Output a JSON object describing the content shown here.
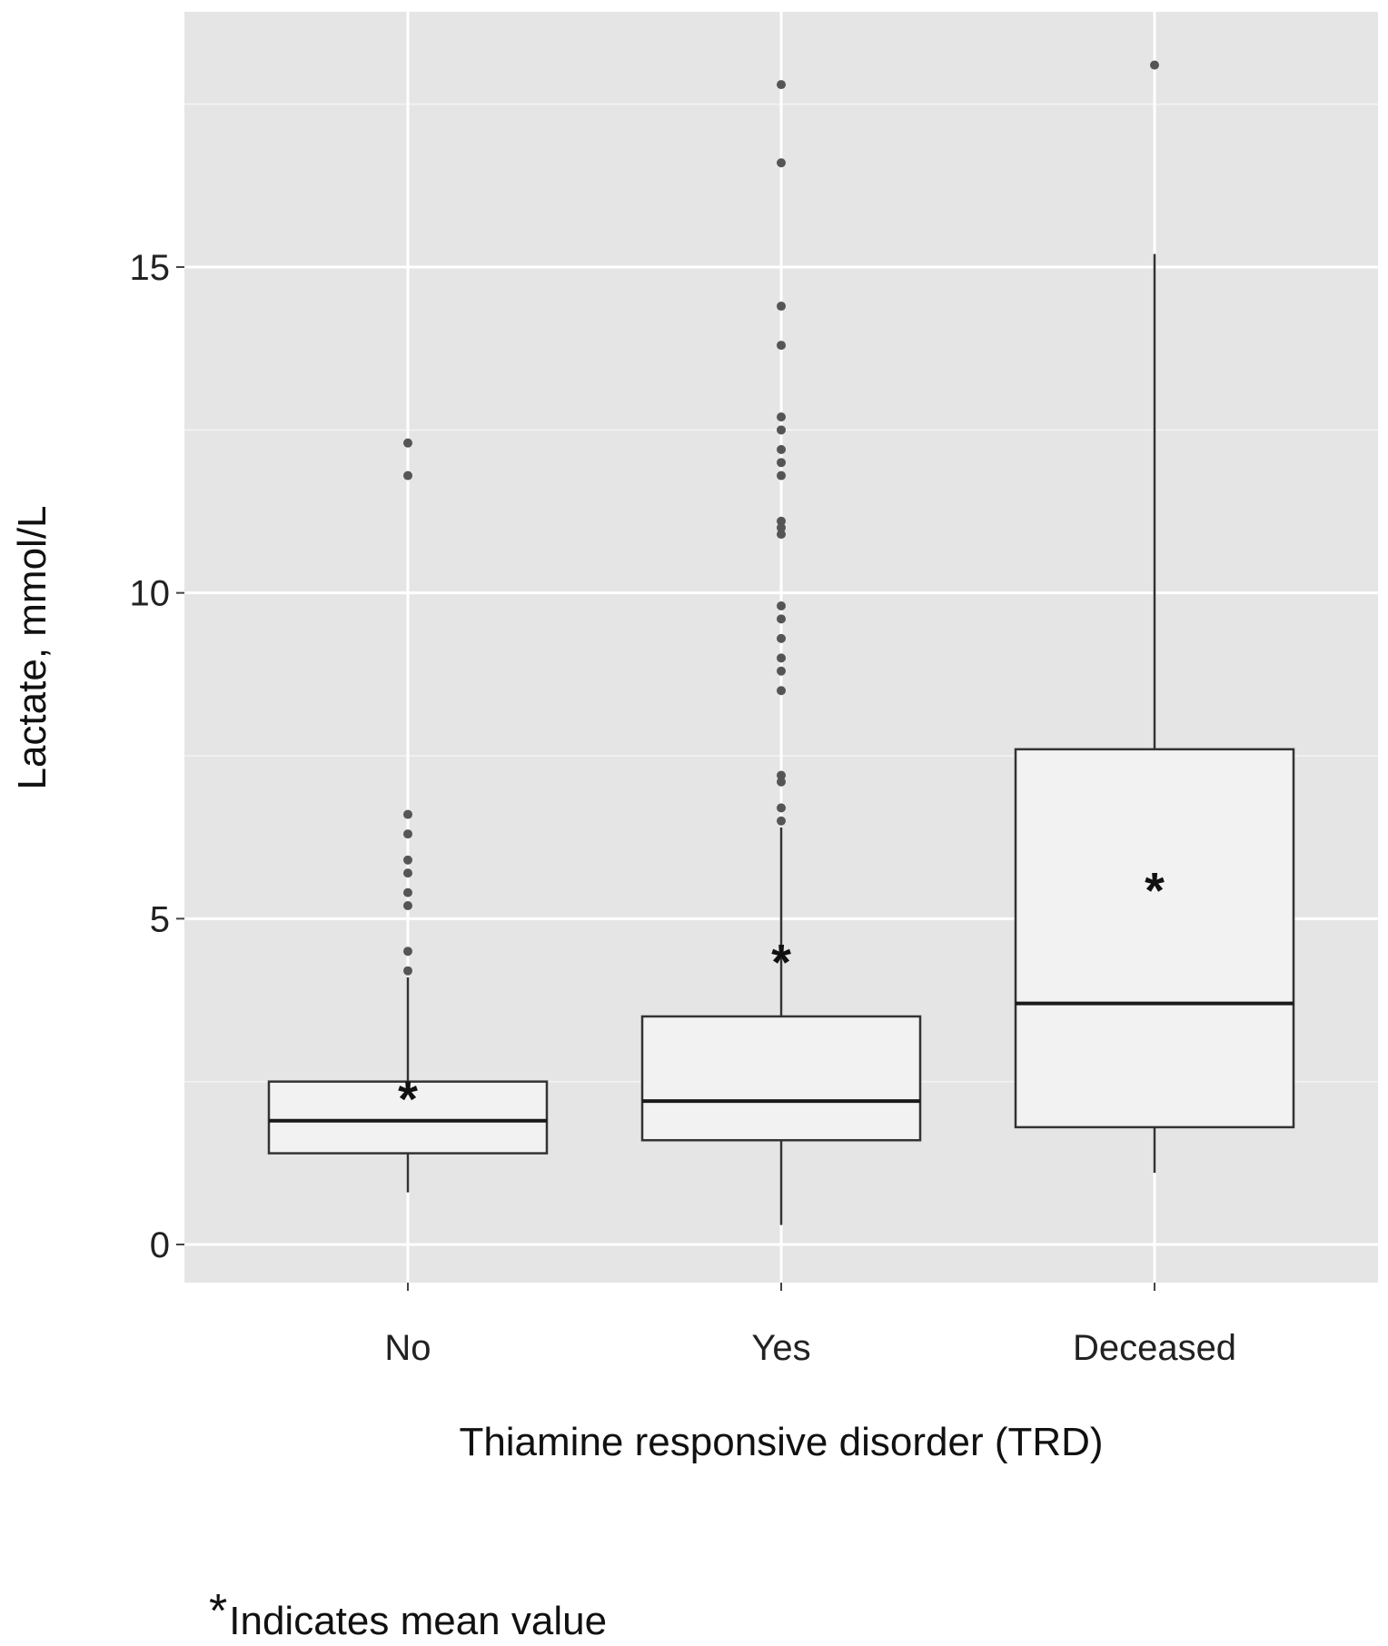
{
  "chart_data": {
    "type": "boxplot",
    "xlabel": "Thiamine responsive disorder (TRD)",
    "ylabel": "Lactate, mmol/L",
    "ylim": [
      -0.55,
      19.5
    ],
    "yticks": [
      0,
      5,
      10,
      15
    ],
    "grid": true,
    "background": "#e5e5e5",
    "box_fill": "#f2f2f2",
    "outlier_color": "#555555",
    "categories": [
      "No",
      "Yes",
      "Deceased"
    ],
    "boxes": [
      {
        "category": "No",
        "whisker_low": 0.8,
        "q1": 1.4,
        "median": 1.9,
        "q3": 2.5,
        "whisker_high": 4.1,
        "mean": 2.3,
        "outliers": [
          4.2,
          4.5,
          5.2,
          5.4,
          5.7,
          5.9,
          6.3,
          6.6,
          11.8,
          12.3
        ]
      },
      {
        "category": "Yes",
        "whisker_low": 0.3,
        "q1": 1.6,
        "median": 2.2,
        "q3": 3.5,
        "whisker_high": 6.4,
        "mean": 4.4,
        "outliers": [
          6.5,
          6.7,
          7.1,
          7.2,
          8.5,
          8.8,
          9.0,
          9.3,
          9.6,
          9.8,
          10.9,
          11.0,
          11.1,
          11.8,
          12.0,
          12.2,
          12.5,
          12.7,
          13.8,
          14.4,
          16.6,
          17.8
        ]
      },
      {
        "category": "Deceased",
        "whisker_low": 1.1,
        "q1": 1.8,
        "median": 3.7,
        "q3": 7.6,
        "whisker_high": 15.2,
        "mean": 5.5,
        "outliers": [
          18.1
        ]
      }
    ]
  },
  "footnote": {
    "symbol": "*",
    "text": "Indicates mean value"
  }
}
